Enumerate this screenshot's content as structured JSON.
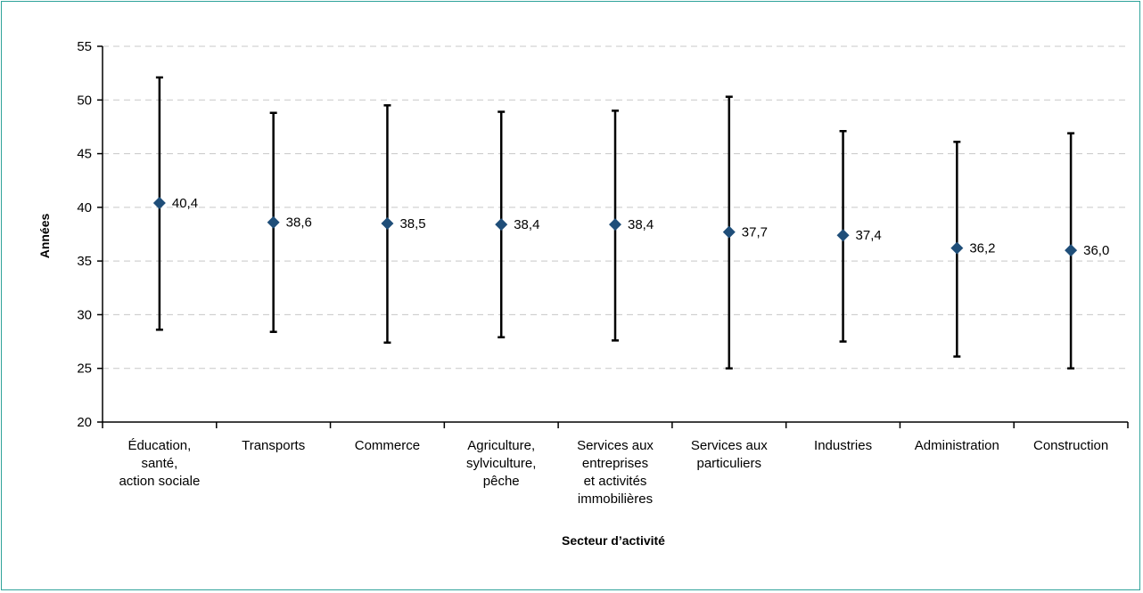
{
  "chart_data": {
    "type": "scatter",
    "subtype": "error-bar",
    "xlabel": "Secteur d’activité",
    "ylabel": "Années",
    "ylim": [
      20,
      55
    ],
    "yticks": [
      20,
      25,
      30,
      35,
      40,
      45,
      50,
      55
    ],
    "grid": "horizontal-dashed",
    "marker": "diamond",
    "colors": {
      "marker": "#1f4e79",
      "errorbar": "#000000",
      "grid": "#c8c8c8",
      "frame": "#2fa39a"
    },
    "categories": [
      [
        "Éducation,",
        "santé,",
        "action sociale"
      ],
      [
        "Transports"
      ],
      [
        "Commerce"
      ],
      [
        "Agriculture,",
        "sylviculture,",
        "pêche"
      ],
      [
        "Services aux",
        "entreprises",
        "et activités",
        "immobilières"
      ],
      [
        "Services aux",
        "particuliers"
      ],
      [
        "Industries"
      ],
      [
        "Administration"
      ],
      [
        "Construction"
      ]
    ],
    "values": [
      40.4,
      38.6,
      38.5,
      38.4,
      38.4,
      37.7,
      37.4,
      36.2,
      36.0
    ],
    "value_labels": [
      "40,4",
      "38,6",
      "38,5",
      "38,4",
      "38,4",
      "37,7",
      "37,4",
      "36,2",
      "36,0"
    ],
    "upper": [
      52.1,
      48.8,
      49.5,
      48.9,
      49.0,
      50.3,
      47.1,
      46.1,
      46.9
    ],
    "lower": [
      28.6,
      28.4,
      27.4,
      27.9,
      27.6,
      25.0,
      27.5,
      26.1,
      25.0
    ]
  }
}
